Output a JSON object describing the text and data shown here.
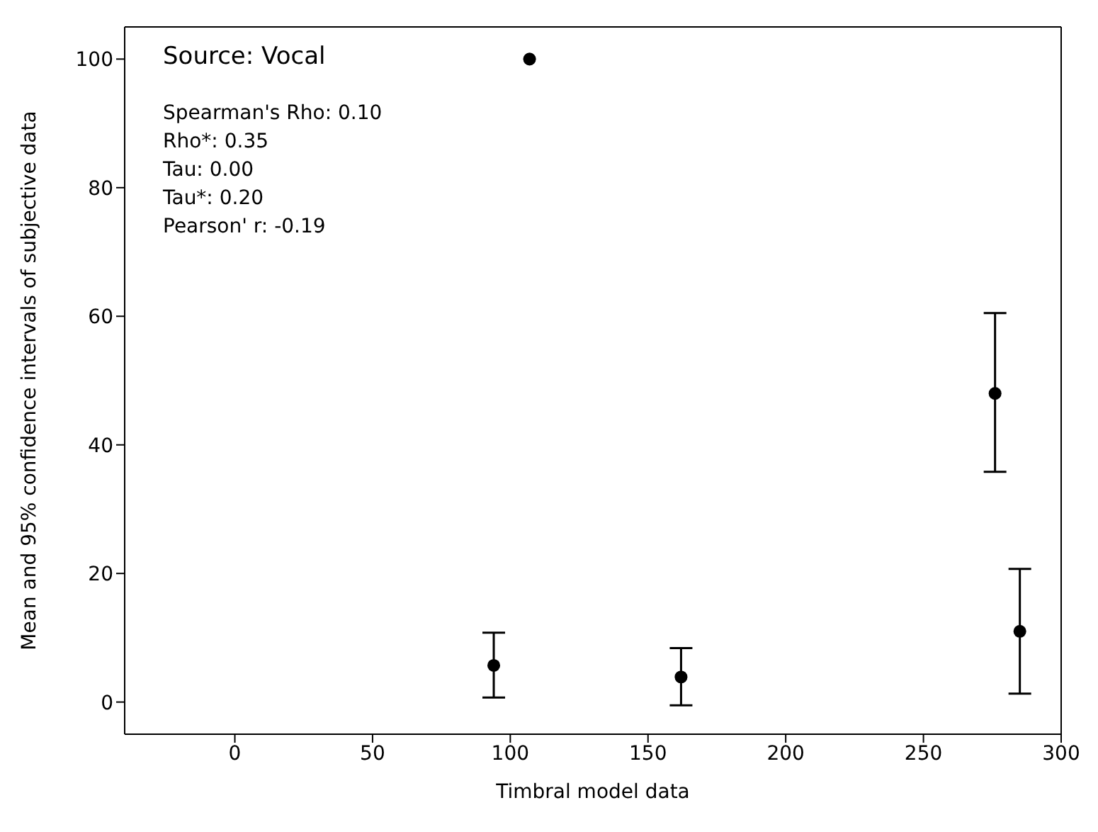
{
  "chart_data": {
    "type": "scatter",
    "xlabel": "Timbral model data",
    "ylabel": "Mean and 95% confidence intervals of subjective data",
    "x": [
      107,
      94,
      162,
      276,
      285
    ],
    "values": [
      100,
      5.7,
      3.9,
      48,
      11
    ],
    "errors": [
      null,
      [
        0.7,
        10.8
      ],
      [
        -0.5,
        8.4
      ],
      [
        35.8,
        60.5
      ],
      [
        1.3,
        20.7
      ]
    ],
    "color": "#000000",
    "marker": "circle",
    "grid": false,
    "legend": false,
    "xlim": [
      -40,
      300
    ],
    "xticks": [
      0,
      50,
      100,
      150,
      200,
      250,
      300
    ],
    "ylim": [
      -5,
      105
    ],
    "yticks": [
      0,
      20,
      40,
      60,
      80,
      100
    ],
    "annotations": [
      "Source: Vocal",
      "Spearman's Rho: 0.10",
      "Rho*: 0.35",
      "Tau: 0.00",
      "Tau*: 0.20",
      "Pearson' r: -0.19"
    ]
  }
}
